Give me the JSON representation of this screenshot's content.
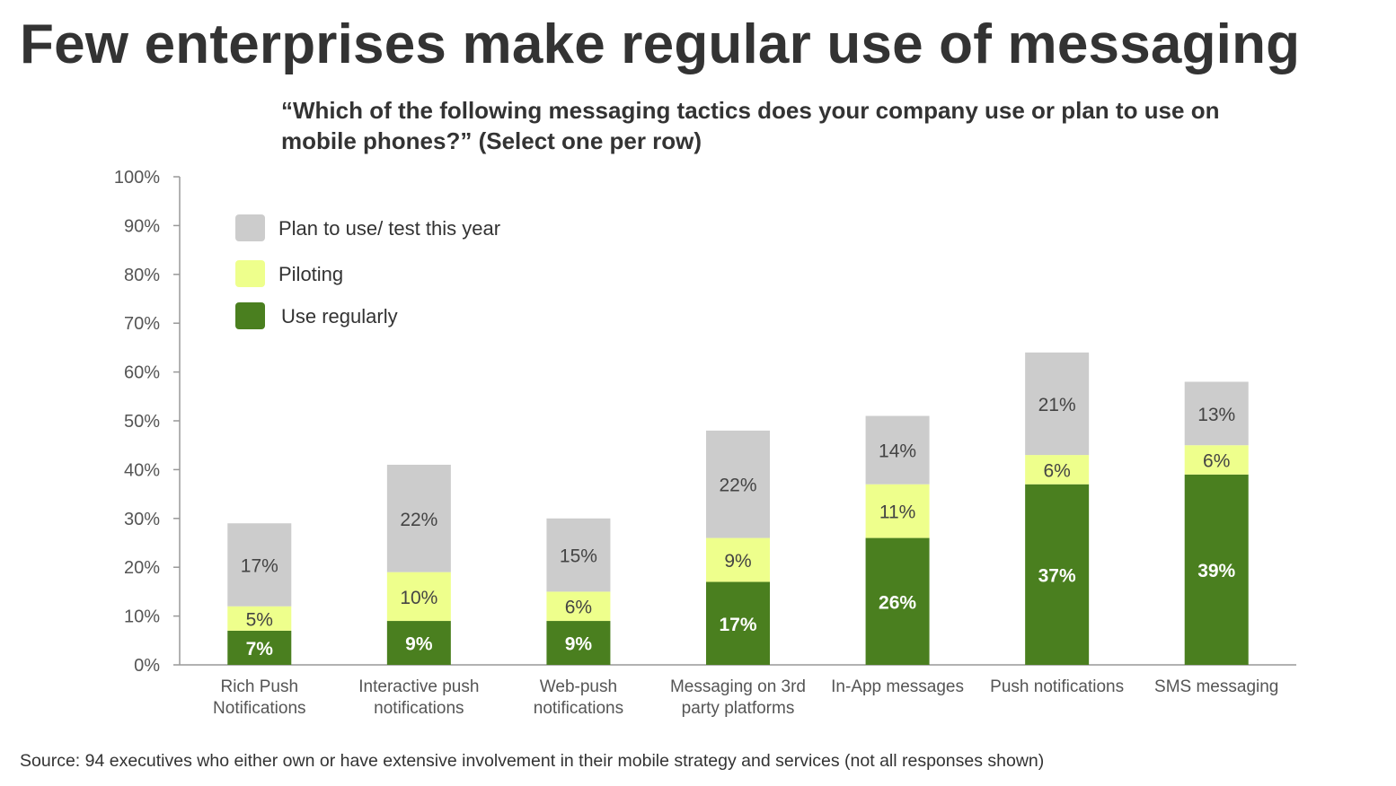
{
  "title": "Few enterprises make regular use of messaging",
  "subtitle": "“Which of the following messaging tactics does your company use or plan to use on mobile phones?” (Select one per row)",
  "source": "Source: 94 executives who either own or have extensive involvement in their mobile strategy and services (not all responses shown)",
  "colors": {
    "use_regularly": "#4a7f1f",
    "piloting": "#eeff8c",
    "plan": "#cccccc",
    "axis": "#999999"
  },
  "chart_data": {
    "type": "bar",
    "stacked": true,
    "ylim": [
      0,
      100
    ],
    "yticks": [
      "0%",
      "10%",
      "20%",
      "30%",
      "40%",
      "50%",
      "60%",
      "70%",
      "80%",
      "90%",
      "100%"
    ],
    "categories": [
      [
        "Rich Push",
        "Notifications"
      ],
      [
        "Interactive push",
        "notifications"
      ],
      [
        "Web-push",
        "notifications"
      ],
      [
        "Messaging on 3rd",
        "party platforms"
      ],
      [
        "In-App messages"
      ],
      [
        "Push notifications"
      ],
      [
        "SMS messaging"
      ]
    ],
    "series": [
      {
        "name": "Use regularly",
        "values": [
          7,
          9,
          9,
          17,
          26,
          37,
          39
        ],
        "labels": [
          "7%",
          "9%",
          "9%",
          "17%",
          "26%",
          "37%",
          "39%"
        ]
      },
      {
        "name": "Piloting",
        "values": [
          5,
          10,
          6,
          9,
          11,
          6,
          6
        ],
        "labels": [
          "5%",
          "10%",
          "6%",
          "9%",
          "11%",
          "6%",
          "6%"
        ]
      },
      {
        "name": "Plan to use/ test this year",
        "values": [
          17,
          22,
          15,
          22,
          14,
          21,
          13
        ],
        "labels": [
          "17%",
          "22%",
          "15%",
          "22%",
          "14%",
          "21%",
          "13%"
        ]
      }
    ],
    "legend": {
      "placement": "top-left",
      "entries": [
        "Plan to use/ test this year",
        "Piloting",
        "Use regularly"
      ]
    },
    "grid": false
  }
}
